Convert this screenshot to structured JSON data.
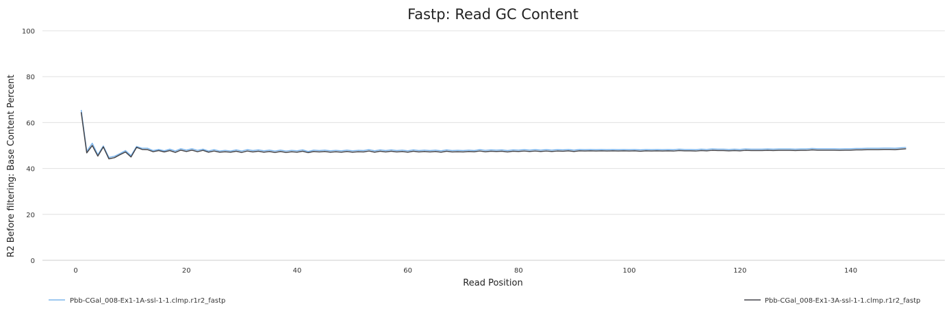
{
  "chart_data": {
    "type": "line",
    "title": "Fastp: Read GC Content",
    "xlabel": "Read Position",
    "ylabel": "R2 Before filtering: Base Content Percent",
    "xlim": [
      -6,
      157
    ],
    "ylim": [
      0,
      100
    ],
    "x_ticks": [
      0,
      20,
      40,
      60,
      80,
      100,
      120,
      140
    ],
    "y_ticks": [
      0,
      20,
      40,
      60,
      80,
      100
    ],
    "grid": "horizontal",
    "legend_position": "bottom",
    "series": [
      {
        "name": "Pbb-CGal_008-Ex1-1A-ssl-1-1.clmp.r1r2_fastp",
        "color": "#7cb5ec",
        "x": [
          1,
          2,
          3,
          4,
          5,
          6,
          7,
          8,
          9,
          10,
          11,
          12,
          13,
          14,
          15,
          16,
          17,
          18,
          19,
          20,
          21,
          22,
          23,
          24,
          25,
          26,
          27,
          28,
          29,
          30,
          31,
          32,
          33,
          34,
          35,
          36,
          37,
          38,
          39,
          40,
          41,
          42,
          43,
          44,
          45,
          46,
          47,
          48,
          49,
          50,
          51,
          52,
          53,
          54,
          55,
          56,
          57,
          58,
          59,
          60,
          61,
          62,
          63,
          64,
          65,
          66,
          67,
          68,
          69,
          70,
          71,
          72,
          73,
          74,
          75,
          76,
          77,
          78,
          79,
          80,
          81,
          82,
          83,
          84,
          85,
          86,
          87,
          88,
          89,
          90,
          91,
          92,
          93,
          94,
          95,
          96,
          97,
          98,
          99,
          100,
          101,
          102,
          103,
          104,
          105,
          106,
          107,
          108,
          109,
          110,
          111,
          112,
          113,
          114,
          115,
          116,
          117,
          118,
          119,
          120,
          121,
          122,
          123,
          124,
          125,
          126,
          127,
          128,
          129,
          130,
          131,
          132,
          133,
          134,
          135,
          136,
          137,
          138,
          139,
          140,
          141,
          142,
          143,
          144,
          145,
          146,
          147,
          148,
          149,
          150
        ],
        "y": [
          65.5,
          47.5,
          51.0,
          46.0,
          49.8,
          44.8,
          45.3,
          46.5,
          47.8,
          45.6,
          49.6,
          48.8,
          48.8,
          47.8,
          48.3,
          47.7,
          48.4,
          47.6,
          48.6,
          48.0,
          48.6,
          47.9,
          48.4,
          47.6,
          48.2,
          47.6,
          47.9,
          47.6,
          48.1,
          47.6,
          48.2,
          47.8,
          48.1,
          47.7,
          48.0,
          47.6,
          48.0,
          47.6,
          47.9,
          47.7,
          48.1,
          47.4,
          48.0,
          47.8,
          48.0,
          47.7,
          47.9,
          47.7,
          48.0,
          47.7,
          47.9,
          47.8,
          48.2,
          47.7,
          48.1,
          47.8,
          48.1,
          47.8,
          48.0,
          47.7,
          48.1,
          47.8,
          48.0,
          47.8,
          48.0,
          47.7,
          48.1,
          47.8,
          47.9,
          47.8,
          48.0,
          47.8,
          48.2,
          47.9,
          48.1,
          48.0,
          48.1,
          47.8,
          48.1,
          48.0,
          48.2,
          48.0,
          48.2,
          48.0,
          48.2,
          48.0,
          48.2,
          48.1,
          48.3,
          48.0,
          48.3,
          48.2,
          48.3,
          48.2,
          48.3,
          48.2,
          48.3,
          48.2,
          48.3,
          48.2,
          48.3,
          48.1,
          48.3,
          48.2,
          48.3,
          48.2,
          48.3,
          48.2,
          48.4,
          48.3,
          48.3,
          48.2,
          48.4,
          48.3,
          48.5,
          48.4,
          48.4,
          48.3,
          48.4,
          48.3,
          48.5,
          48.4,
          48.4,
          48.4,
          48.5,
          48.4,
          48.5,
          48.5,
          48.5,
          48.4,
          48.5,
          48.5,
          48.7,
          48.6,
          48.6,
          48.6,
          48.6,
          48.5,
          48.6,
          48.6,
          48.7,
          48.7,
          48.8,
          48.8,
          48.8,
          48.9,
          48.9,
          48.8,
          49.0,
          49.2
        ]
      },
      {
        "name": "Pbb-CGal_008-Ex1-3A-ssl-1-1.clmp.r1r2_fastp",
        "color": "#434348",
        "x": [
          1,
          2,
          3,
          4,
          5,
          6,
          7,
          8,
          9,
          10,
          11,
          12,
          13,
          14,
          15,
          16,
          17,
          18,
          19,
          20,
          21,
          22,
          23,
          24,
          25,
          26,
          27,
          28,
          29,
          30,
          31,
          32,
          33,
          34,
          35,
          36,
          37,
          38,
          39,
          40,
          41,
          42,
          43,
          44,
          45,
          46,
          47,
          48,
          49,
          50,
          51,
          52,
          53,
          54,
          55,
          56,
          57,
          58,
          59,
          60,
          61,
          62,
          63,
          64,
          65,
          66,
          67,
          68,
          69,
          70,
          71,
          72,
          73,
          74,
          75,
          76,
          77,
          78,
          79,
          80,
          81,
          82,
          83,
          84,
          85,
          86,
          87,
          88,
          89,
          90,
          91,
          92,
          93,
          94,
          95,
          96,
          97,
          98,
          99,
          100,
          101,
          102,
          103,
          104,
          105,
          106,
          107,
          108,
          109,
          110,
          111,
          112,
          113,
          114,
          115,
          116,
          117,
          118,
          119,
          120,
          121,
          122,
          123,
          124,
          125,
          126,
          127,
          128,
          129,
          130,
          131,
          132,
          133,
          134,
          135,
          136,
          137,
          138,
          139,
          140,
          141,
          142,
          143,
          144,
          145,
          146,
          147,
          148,
          149,
          150
        ],
        "y": [
          64.5,
          46.8,
          50.0,
          45.4,
          49.4,
          44.2,
          44.7,
          46.0,
          47.2,
          45.0,
          49.2,
          48.3,
          48.2,
          47.3,
          47.8,
          47.2,
          47.8,
          47.0,
          48.0,
          47.4,
          48.0,
          47.3,
          47.9,
          47.1,
          47.6,
          47.1,
          47.3,
          47.1,
          47.5,
          47.0,
          47.6,
          47.2,
          47.5,
          47.1,
          47.4,
          47.0,
          47.4,
          47.0,
          47.3,
          47.1,
          47.5,
          46.9,
          47.4,
          47.2,
          47.4,
          47.1,
          47.3,
          47.1,
          47.4,
          47.1,
          47.3,
          47.2,
          47.6,
          47.1,
          47.5,
          47.2,
          47.5,
          47.2,
          47.4,
          47.1,
          47.5,
          47.2,
          47.4,
          47.2,
          47.4,
          47.1,
          47.5,
          47.2,
          47.3,
          47.2,
          47.4,
          47.3,
          47.6,
          47.3,
          47.5,
          47.4,
          47.5,
          47.2,
          47.5,
          47.4,
          47.6,
          47.4,
          47.6,
          47.4,
          47.6,
          47.4,
          47.6,
          47.5,
          47.7,
          47.4,
          47.7,
          47.6,
          47.7,
          47.6,
          47.7,
          47.6,
          47.7,
          47.6,
          47.7,
          47.6,
          47.7,
          47.5,
          47.7,
          47.6,
          47.7,
          47.6,
          47.7,
          47.6,
          47.8,
          47.7,
          47.7,
          47.6,
          47.8,
          47.7,
          47.9,
          47.8,
          47.8,
          47.7,
          47.8,
          47.7,
          47.9,
          47.8,
          47.8,
          47.8,
          47.9,
          47.8,
          47.9,
          47.9,
          47.9,
          47.8,
          47.9,
          47.9,
          48.1,
          48.0,
          48.0,
          48.0,
          48.0,
          47.9,
          48.0,
          48.0,
          48.1,
          48.1,
          48.2,
          48.2,
          48.2,
          48.3,
          48.3,
          48.2,
          48.4,
          48.6
        ]
      }
    ]
  }
}
